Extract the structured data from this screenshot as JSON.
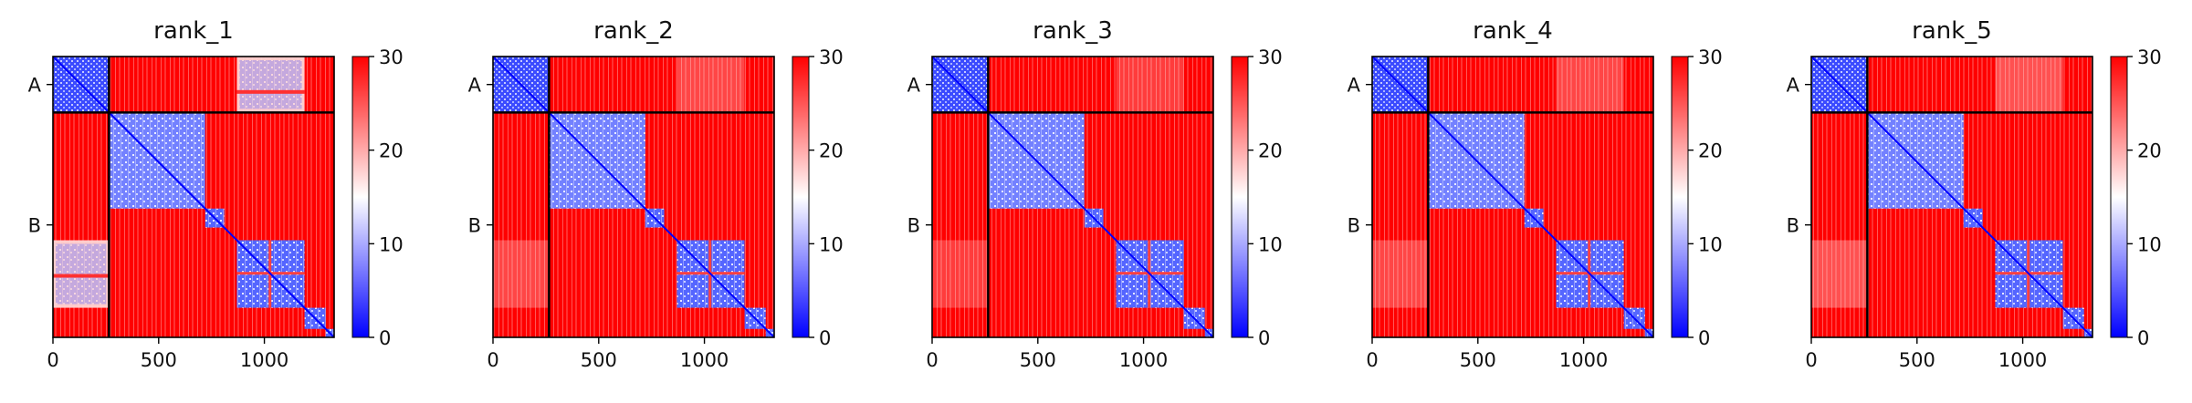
{
  "chart_data": {
    "type": "heatmap",
    "panels": [
      {
        "title": "rank_1"
      },
      {
        "title": "rank_2"
      },
      {
        "title": "rank_3"
      },
      {
        "title": "rank_4"
      },
      {
        "title": "rank_5"
      }
    ],
    "x_ticks": [
      "0",
      "500",
      "1000"
    ],
    "x_tick_values": [
      0,
      500,
      1000
    ],
    "y_ticks": [
      "A",
      "B"
    ],
    "chains": [
      {
        "name": "A",
        "start": 0,
        "end": 265
      },
      {
        "name": "B",
        "start": 265,
        "end": 1330
      }
    ],
    "xlim": [
      0,
      1330
    ],
    "ylim": [
      1330,
      0
    ],
    "colorbar": {
      "range": [
        0,
        30
      ],
      "ticks": [
        "0",
        "10",
        "20",
        "30"
      ],
      "tick_values": [
        0,
        10,
        20,
        30
      ],
      "colors": [
        "#0000ff",
        "#ffffff",
        "#ff0000"
      ]
    },
    "blocks_B": [
      {
        "start": 265,
        "end": 720
      },
      {
        "start": 720,
        "end": 810
      },
      {
        "start": 870,
        "end": 1190
      },
      {
        "start": 1190,
        "end": 1290
      },
      {
        "start": 1290,
        "end": 1330
      }
    ],
    "interchain_contact_band": {
      "b_start": 870,
      "b_end": 1190,
      "strength_by_panel": [
        1.0,
        0.35,
        0.3,
        0.35,
        0.4
      ]
    }
  }
}
